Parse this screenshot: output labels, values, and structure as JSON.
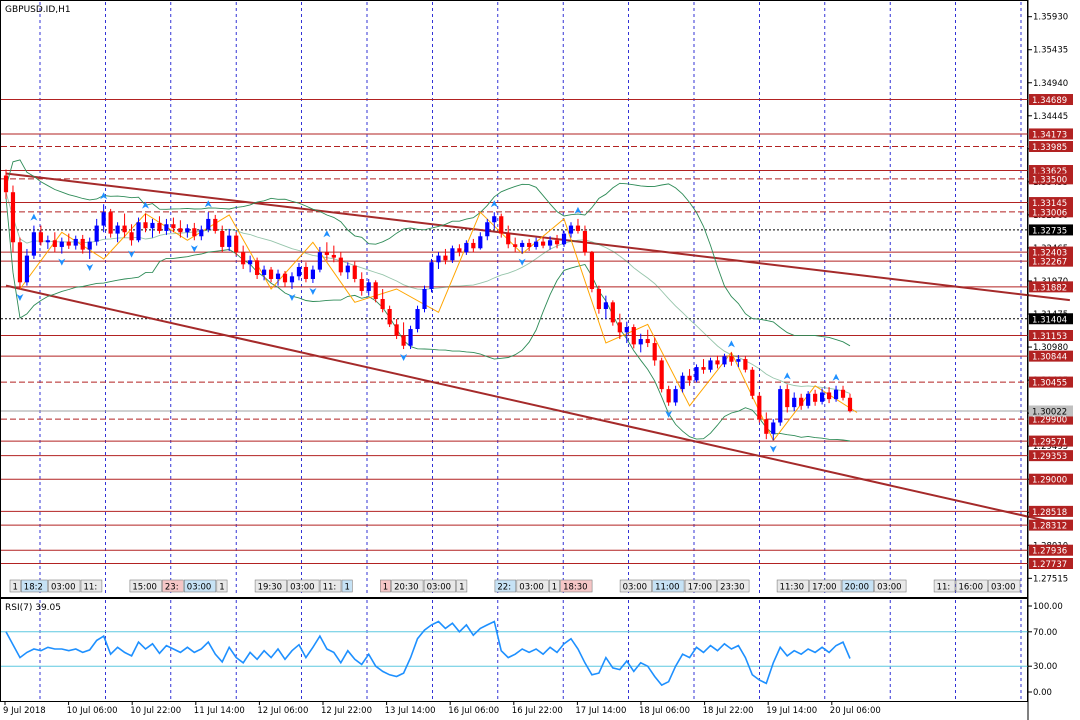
{
  "window": {
    "symbol_title": "GBPUSD.ID,H1",
    "rsi_title": "RSI(7) 39.05"
  },
  "colors": {
    "grid": "#0000cc",
    "price_axis_line": "#000000",
    "level_line": "#b22222",
    "level_label_bg": "#b22222",
    "trend_line": "#a52a2a",
    "bull_candle": "#0000ff",
    "bear_candle": "#ff0000",
    "bollinger": "#2e8b57",
    "zigzag": "#ffa500",
    "fractal": "#1e90ff",
    "rsi_line": "#1e90ff",
    "rsi_level": "#5fc8e0"
  },
  "price_axis": {
    "ticks": [
      "1.35930",
      "1.35435",
      "1.34940",
      "1.34445",
      "1.33950",
      "1.33455",
      "1.32960",
      "1.32465",
      "1.31970",
      "1.31475",
      "1.30980",
      "1.30485",
      "1.29990",
      "1.29495",
      "1.29000",
      "1.28505",
      "1.28010",
      "1.27515"
    ],
    "level_labels": [
      {
        "value": 1.34689,
        "text": "1.34689",
        "style": "solid"
      },
      {
        "value": 1.34173,
        "text": "1.34173",
        "style": "solid"
      },
      {
        "value": 1.33985,
        "text": "1.33985",
        "style": "dashed"
      },
      {
        "value": 1.33625,
        "text": "1.33625",
        "style": "solid"
      },
      {
        "value": 1.335,
        "text": "1.33500",
        "style": "dashed"
      },
      {
        "value": 1.33145,
        "text": "1.33145",
        "style": "solid"
      },
      {
        "value": 1.33006,
        "text": "1.33006",
        "style": "dashed"
      },
      {
        "value": 1.32403,
        "text": "1.32403",
        "style": "solid"
      },
      {
        "value": 1.32267,
        "text": "1.32267",
        "style": "solid"
      },
      {
        "value": 1.31882,
        "text": "1.31882",
        "style": "solid"
      },
      {
        "value": 1.31153,
        "text": "1.31153",
        "style": "solid"
      },
      {
        "value": 1.30844,
        "text": "1.30844",
        "style": "solid"
      },
      {
        "value": 1.30455,
        "text": "1.30455",
        "style": "dashed"
      },
      {
        "value": 1.299,
        "text": "1.29900",
        "style": "dashed"
      },
      {
        "value": 1.29571,
        "text": "1.29571",
        "style": "solid"
      },
      {
        "value": 1.29353,
        "text": "1.29353",
        "style": "solid"
      },
      {
        "value": 1.29,
        "text": "1.29000",
        "style": "solid"
      },
      {
        "value": 1.28518,
        "text": "1.28518",
        "style": "solid"
      },
      {
        "value": 1.28312,
        "text": "1.28312",
        "style": "solid"
      },
      {
        "value": 1.27936,
        "text": "1.27936",
        "style": "solid"
      },
      {
        "value": 1.27737,
        "text": "1.27737",
        "style": "solid"
      }
    ],
    "black_tags": [
      {
        "value": 1.32735,
        "text": "1.32735",
        "style": "dotted"
      },
      {
        "value": 1.31404,
        "text": "1.31404",
        "style": "dotted"
      }
    ],
    "current_price": {
      "value": 1.30022,
      "text": "1.30022"
    }
  },
  "rsi_axis": {
    "ticks": [
      {
        "value": 100,
        "text": "100.00"
      },
      {
        "value": 70,
        "text": "70.00"
      },
      {
        "value": 30,
        "text": "30.00"
      },
      {
        "value": 0,
        "text": "0.00"
      }
    ],
    "levels": [
      70,
      30
    ]
  },
  "time_axis": {
    "labels": [
      "9 Jul 2018",
      "10 Jul 06:00",
      "10 Jul 22:00",
      "11 Jul 14:00",
      "12 Jul 06:00",
      "12 Jul 22:00",
      "13 Jul 14:00",
      "16 Jul 06:00",
      "16 Jul 22:00",
      "17 Jul 14:00",
      "18 Jul 06:00",
      "18 Jul 22:00",
      "19 Jul 14:00",
      "20 Jul 06:00"
    ]
  },
  "session_tags": {
    "items": [
      "1",
      "18:2",
      "03:00",
      "11:",
      "15:00",
      "23:",
      "03:00",
      "1",
      "19:30",
      "03:00",
      "11:",
      "1",
      "1",
      "20:30",
      "03:00",
      "1",
      "22:",
      "03:00",
      "1",
      "18:30",
      "03:00",
      "11:00",
      "17:00",
      "23:30",
      "11:30",
      "17:00",
      "20:00",
      "03:00",
      "11:",
      "16:00",
      "03:00",
      "11:30",
      "2",
      "22:30"
    ]
  },
  "chart_data": {
    "type": "candlestick",
    "symbol": "GBPUSD.ID",
    "timeframe": "H1",
    "ylim": [
      1.2725,
      1.3615
    ],
    "y_axis_side": "right",
    "grid": true,
    "candles_ohlc": [
      [
        1.3355,
        1.3364,
        1.332,
        1.333
      ],
      [
        1.333,
        1.334,
        1.324,
        1.3255
      ],
      [
        1.3255,
        1.3262,
        1.3185,
        1.3195
      ],
      [
        1.3195,
        1.3245,
        1.319,
        1.3235
      ],
      [
        1.3235,
        1.328,
        1.323,
        1.327
      ],
      [
        1.327,
        1.328,
        1.325,
        1.3255
      ],
      [
        1.3255,
        1.3265,
        1.3245,
        1.3258
      ],
      [
        1.3258,
        1.327,
        1.324,
        1.3248
      ],
      [
        1.3248,
        1.3262,
        1.3238,
        1.3256
      ],
      [
        1.3256,
        1.3268,
        1.3245,
        1.325
      ],
      [
        1.325,
        1.3265,
        1.3244,
        1.326
      ],
      [
        1.326,
        1.3266,
        1.3238,
        1.3244
      ],
      [
        1.3244,
        1.3262,
        1.323,
        1.3256
      ],
      [
        1.3256,
        1.329,
        1.325,
        1.328
      ],
      [
        1.328,
        1.3312,
        1.327,
        1.33
      ],
      [
        1.33,
        1.3305,
        1.3262,
        1.3268
      ],
      [
        1.3268,
        1.3285,
        1.3255,
        1.328
      ],
      [
        1.328,
        1.3298,
        1.3262,
        1.327
      ],
      [
        1.327,
        1.3282,
        1.325,
        1.3258
      ],
      [
        1.3258,
        1.3292,
        1.3255,
        1.3285
      ],
      [
        1.3285,
        1.3298,
        1.327,
        1.3276
      ],
      [
        1.3276,
        1.329,
        1.3262,
        1.3284
      ],
      [
        1.3284,
        1.3294,
        1.3268,
        1.3272
      ],
      [
        1.3272,
        1.329,
        1.3266,
        1.3282
      ],
      [
        1.3282,
        1.3292,
        1.327,
        1.3276
      ],
      [
        1.3276,
        1.3288,
        1.3262,
        1.327
      ],
      [
        1.327,
        1.3282,
        1.3262,
        1.3276
      ],
      [
        1.3276,
        1.3284,
        1.3258,
        1.3264
      ],
      [
        1.3264,
        1.328,
        1.3258,
        1.3274
      ],
      [
        1.3274,
        1.33,
        1.327,
        1.329
      ],
      [
        1.329,
        1.3296,
        1.3268,
        1.3272
      ],
      [
        1.3272,
        1.328,
        1.324,
        1.3248
      ],
      [
        1.3248,
        1.3275,
        1.3242,
        1.3265
      ],
      [
        1.3265,
        1.327,
        1.3235,
        1.324
      ],
      [
        1.324,
        1.325,
        1.3215,
        1.3222
      ],
      [
        1.3222,
        1.3235,
        1.321,
        1.3228
      ],
      [
        1.3228,
        1.3232,
        1.32,
        1.3206
      ],
      [
        1.3206,
        1.322,
        1.3198,
        1.3214
      ],
      [
        1.3214,
        1.3218,
        1.3195,
        1.32
      ],
      [
        1.32,
        1.3214,
        1.319,
        1.3208
      ],
      [
        1.3208,
        1.3212,
        1.3188,
        1.3195
      ],
      [
        1.3195,
        1.321,
        1.3185,
        1.3204
      ],
      [
        1.3204,
        1.3224,
        1.3198,
        1.3218
      ],
      [
        1.3218,
        1.3225,
        1.3195,
        1.32
      ],
      [
        1.32,
        1.322,
        1.3194,
        1.3214
      ],
      [
        1.3214,
        1.3248,
        1.321,
        1.324
      ],
      [
        1.324,
        1.3255,
        1.3228,
        1.3236
      ],
      [
        1.3236,
        1.325,
        1.3225,
        1.3232
      ],
      [
        1.3232,
        1.324,
        1.3205,
        1.321
      ],
      [
        1.321,
        1.3225,
        1.32,
        1.322
      ],
      [
        1.322,
        1.3226,
        1.3195,
        1.32
      ],
      [
        1.32,
        1.321,
        1.3175,
        1.3182
      ],
      [
        1.3182,
        1.32,
        1.3175,
        1.3195
      ],
      [
        1.3195,
        1.3198,
        1.3165,
        1.317
      ],
      [
        1.317,
        1.3185,
        1.315,
        1.3155
      ],
      [
        1.3155,
        1.316,
        1.3128,
        1.3132
      ],
      [
        1.3132,
        1.314,
        1.311,
        1.3115
      ],
      [
        1.3115,
        1.3135,
        1.3095,
        1.31
      ],
      [
        1.31,
        1.313,
        1.3095,
        1.3125
      ],
      [
        1.3125,
        1.316,
        1.312,
        1.3155
      ],
      [
        1.3155,
        1.319,
        1.315,
        1.3185
      ],
      [
        1.3185,
        1.323,
        1.318,
        1.3225
      ],
      [
        1.3225,
        1.324,
        1.3215,
        1.3235
      ],
      [
        1.3235,
        1.3245,
        1.3222,
        1.3228
      ],
      [
        1.3228,
        1.325,
        1.3224,
        1.3246
      ],
      [
        1.3246,
        1.3252,
        1.3234,
        1.324
      ],
      [
        1.324,
        1.3258,
        1.3236,
        1.3254
      ],
      [
        1.3254,
        1.326,
        1.324,
        1.3246
      ],
      [
        1.3246,
        1.327,
        1.3244,
        1.3264
      ],
      [
        1.3264,
        1.329,
        1.3258,
        1.3285
      ],
      [
        1.3285,
        1.33,
        1.3275,
        1.3294
      ],
      [
        1.3294,
        1.3298,
        1.3262,
        1.3268
      ],
      [
        1.3268,
        1.328,
        1.3246,
        1.3252
      ],
      [
        1.3252,
        1.3262,
        1.324,
        1.3248
      ],
      [
        1.3248,
        1.3258,
        1.3238,
        1.3254
      ],
      [
        1.3254,
        1.326,
        1.3242,
        1.3248
      ],
      [
        1.3248,
        1.3262,
        1.3244,
        1.3256
      ],
      [
        1.3256,
        1.3262,
        1.3246,
        1.325
      ],
      [
        1.325,
        1.3264,
        1.3244,
        1.3258
      ],
      [
        1.3258,
        1.3266,
        1.3246,
        1.3252
      ],
      [
        1.3252,
        1.3272,
        1.3248,
        1.3268
      ],
      [
        1.3268,
        1.3285,
        1.3262,
        1.328
      ],
      [
        1.328,
        1.329,
        1.3268,
        1.3272
      ],
      [
        1.3272,
        1.328,
        1.3235,
        1.324
      ],
      [
        1.324,
        1.3242,
        1.318,
        1.3185
      ],
      [
        1.3185,
        1.319,
        1.3148,
        1.3155
      ],
      [
        1.3155,
        1.3175,
        1.314,
        1.3165
      ],
      [
        1.3165,
        1.3168,
        1.313,
        1.3135
      ],
      [
        1.3135,
        1.3148,
        1.311,
        1.312
      ],
      [
        1.312,
        1.3136,
        1.3104,
        1.3128
      ],
      [
        1.3128,
        1.3132,
        1.3096,
        1.3102
      ],
      [
        1.3102,
        1.3118,
        1.309,
        1.311
      ],
      [
        1.311,
        1.3124,
        1.3098,
        1.3104
      ],
      [
        1.3104,
        1.3112,
        1.307,
        1.3078
      ],
      [
        1.3078,
        1.3082,
        1.303,
        1.3035
      ],
      [
        1.3035,
        1.304,
        1.301,
        1.3015
      ],
      [
        1.3015,
        1.304,
        1.301,
        1.3035
      ],
      [
        1.3035,
        1.306,
        1.303,
        1.3055
      ],
      [
        1.3055,
        1.3065,
        1.304,
        1.3048
      ],
      [
        1.3048,
        1.3072,
        1.3045,
        1.3068
      ],
      [
        1.3068,
        1.308,
        1.3058,
        1.3064
      ],
      [
        1.3064,
        1.3082,
        1.306,
        1.3078
      ],
      [
        1.3078,
        1.3085,
        1.3066,
        1.3072
      ],
      [
        1.3072,
        1.3088,
        1.3068,
        1.3084
      ],
      [
        1.3084,
        1.309,
        1.307,
        1.3076
      ],
      [
        1.3076,
        1.3086,
        1.3068,
        1.308
      ],
      [
        1.308,
        1.3084,
        1.306,
        1.3064
      ],
      [
        1.3064,
        1.3068,
        1.302,
        1.3025
      ],
      [
        1.3025,
        1.303,
        1.2985,
        1.299
      ],
      [
        1.299,
        1.3,
        1.296,
        1.2968
      ],
      [
        1.2968,
        1.299,
        1.2958,
        1.2985
      ],
      [
        1.2985,
        1.304,
        1.298,
        1.3035
      ],
      [
        1.3035,
        1.3042,
        1.3,
        1.3008
      ],
      [
        1.3008,
        1.303,
        1.3002,
        1.3022
      ],
      [
        1.3022,
        1.3028,
        1.3004,
        1.301
      ],
      [
        1.301,
        1.3032,
        1.3006,
        1.3028
      ],
      [
        1.3028,
        1.3034,
        1.301,
        1.3016
      ],
      [
        1.3016,
        1.3036,
        1.3012,
        1.303
      ],
      [
        1.303,
        1.3038,
        1.3014,
        1.302
      ],
      [
        1.302,
        1.304,
        1.3016,
        1.3034
      ],
      [
        1.3034,
        1.304,
        1.3018,
        1.3022
      ],
      [
        1.3022,
        1.3028,
        1.3,
        1.3002
      ]
    ],
    "trend_lines": [
      {
        "x0": 0,
        "y0": 1.3358,
        "x1": 127,
        "y1": 1.32
      },
      {
        "x0": 0,
        "y0": 1.319,
        "x1": 127,
        "y1": 1.289
      }
    ],
    "rsi_values": [
      70,
      55,
      40,
      46,
      50,
      48,
      52,
      50,
      50,
      48,
      50,
      46,
      49,
      60,
      65,
      44,
      52,
      46,
      42,
      58,
      50,
      56,
      45,
      54,
      50,
      46,
      52,
      46,
      50,
      58,
      44,
      35,
      52,
      40,
      34,
      46,
      38,
      48,
      40,
      50,
      38,
      48,
      55,
      40,
      52,
      65,
      50,
      46,
      34,
      48,
      38,
      32,
      44,
      30,
      24,
      20,
      18,
      22,
      40,
      62,
      72,
      78,
      82,
      74,
      80,
      70,
      78,
      66,
      74,
      78,
      82,
      48,
      40,
      44,
      50,
      46,
      50,
      44,
      52,
      46,
      56,
      62,
      50,
      34,
      20,
      22,
      40,
      28,
      26,
      36,
      24,
      34,
      30,
      18,
      8,
      12,
      30,
      44,
      40,
      52,
      46,
      54,
      48,
      56,
      50,
      54,
      40,
      20,
      14,
      10,
      34,
      52,
      42,
      48,
      44,
      50,
      46,
      52,
      46,
      54,
      58,
      39
    ]
  }
}
